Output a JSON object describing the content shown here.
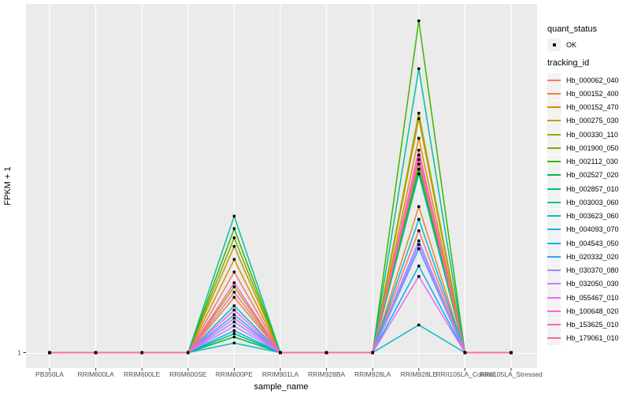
{
  "figure": {
    "background": "#ffffff",
    "panel_bg": "#ebebeb",
    "grid_color": "#ffffff",
    "tick_color": "#333333",
    "tick_label_color": "#4d4d4d",
    "point_color": "#000000"
  },
  "legend": {
    "quant_status": {
      "title": "quant_status",
      "items": [
        {
          "label": "OK",
          "marker": "point"
        }
      ]
    },
    "tracking_id": {
      "title": "tracking_id"
    }
  },
  "chart_data": {
    "type": "line",
    "title": "",
    "xlabel": "sample_name",
    "ylabel": "FPKM + 1",
    "y_scale": "log10",
    "y_ticks": [
      "1"
    ],
    "grid": true,
    "legend_position": "right",
    "categories": [
      "PB350LA",
      "RRIM600LA",
      "RRIM600LE",
      "RRIM600SE",
      "RRIM600PE",
      "RRIM901LA",
      "RRIM928BA",
      "RRIM928LA",
      "RRIM928LE",
      "RRII105LA_Control",
      "RRII105LA_Stressed"
    ],
    "series": [
      {
        "name": "Hb_000062_040",
        "color": "#F8766D",
        "values": [
          1,
          1,
          1,
          1,
          7,
          1,
          1,
          1,
          19,
          1,
          1
        ]
      },
      {
        "name": "Hb_000152_400",
        "color": "#EA8331",
        "values": [
          1,
          1,
          1,
          1,
          3.8,
          1,
          1,
          1,
          34,
          1,
          1
        ]
      },
      {
        "name": "Hb_000152_470",
        "color": "#D89000",
        "values": [
          1,
          1,
          1,
          1,
          9.5,
          1,
          1,
          1,
          177,
          1,
          1
        ]
      },
      {
        "name": "Hb_000275_030",
        "color": "#C09B00",
        "values": [
          1,
          1,
          1,
          1,
          13,
          1,
          1,
          1,
          284,
          1,
          1
        ]
      },
      {
        "name": "Hb_000330_110",
        "color": "#A3A500",
        "values": [
          1,
          1,
          1,
          1,
          4.9,
          1,
          1,
          1,
          325,
          1,
          1
        ]
      },
      {
        "name": "Hb_001900_050",
        "color": "#7CAE00",
        "values": [
          1,
          1,
          1,
          1,
          16,
          1,
          1,
          1,
          95,
          1,
          1
        ]
      },
      {
        "name": "Hb_002112_030",
        "color": "#39B600",
        "values": [
          1,
          1,
          1,
          1,
          20,
          1,
          1,
          1,
          3020,
          1,
          1
        ]
      },
      {
        "name": "Hb_002527_020",
        "color": "#00BB4E",
        "values": [
          1,
          1,
          1,
          1,
          1.46,
          1,
          1,
          1,
          84,
          1,
          1
        ]
      },
      {
        "name": "Hb_002857_010",
        "color": "#00C079",
        "values": [
          1,
          1,
          1,
          1,
          1.58,
          1,
          1,
          1,
          75,
          1,
          1
        ]
      },
      {
        "name": "Hb_003003_060",
        "color": "#00C19C",
        "values": [
          1,
          1,
          1,
          1,
          27,
          1,
          1,
          1,
          950,
          1,
          1
        ]
      },
      {
        "name": "Hb_003623_060",
        "color": "#00BFC4",
        "values": [
          1,
          1,
          1,
          1,
          1.26,
          1,
          1,
          1,
          1.95,
          1,
          1
        ]
      },
      {
        "name": "Hb_004093_070",
        "color": "#00BAE0",
        "values": [
          1,
          1,
          1,
          1,
          3.1,
          1,
          1,
          1,
          25,
          1,
          1
        ]
      },
      {
        "name": "Hb_004543_050",
        "color": "#00B0F6",
        "values": [
          1,
          1,
          1,
          1,
          1.7,
          1,
          1,
          1,
          8.1,
          1,
          1
        ]
      },
      {
        "name": "Hb_020332_020",
        "color": "#35A2FF",
        "values": [
          1,
          1,
          1,
          1,
          2.5,
          1,
          1,
          1,
          12.3,
          1,
          1
        ]
      },
      {
        "name": "Hb_030370_080",
        "color": "#9590FF",
        "values": [
          1,
          1,
          1,
          1,
          2.1,
          1,
          1,
          1,
          14.9,
          1,
          1
        ]
      },
      {
        "name": "Hb_032050_030",
        "color": "#C77CFF",
        "values": [
          1,
          1,
          1,
          1,
          1.9,
          1,
          1,
          1,
          13.6,
          1,
          1
        ]
      },
      {
        "name": "Hb_055467_010",
        "color": "#E76BF3",
        "values": [
          1,
          1,
          1,
          1,
          2.3,
          1,
          1,
          1,
          6.3,
          1,
          1
        ]
      },
      {
        "name": "Hb_100648_020",
        "color": "#FA62DB",
        "values": [
          1,
          1,
          1,
          1,
          2.8,
          1,
          1,
          1,
          118,
          1,
          1
        ]
      },
      {
        "name": "Hb_153625_010",
        "color": "#FF62BC",
        "values": [
          1,
          1,
          1,
          1,
          5.4,
          1,
          1,
          1,
          133,
          1,
          1
        ]
      },
      {
        "name": "Hb_179061_010",
        "color": "#FF6A98",
        "values": [
          1,
          1,
          1,
          1,
          4.3,
          1,
          1,
          1,
          106,
          1,
          1
        ]
      }
    ]
  }
}
